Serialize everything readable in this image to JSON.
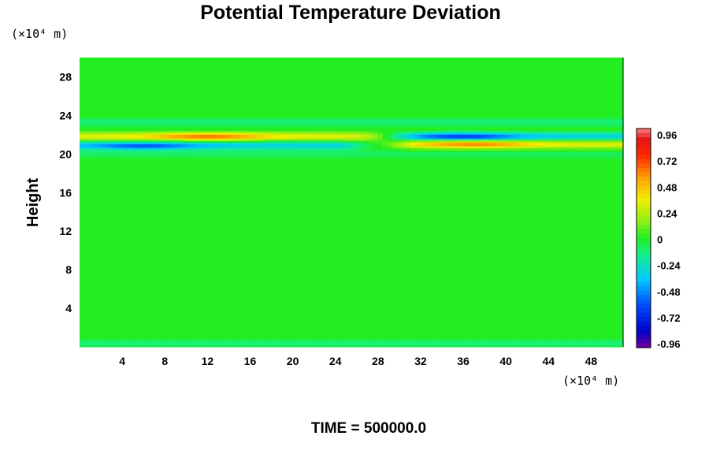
{
  "chart_data": {
    "type": "heatmap",
    "title": "Potential Temperature Deviation",
    "ylabel": "Height",
    "y_unit_label": "(×10⁴ m)",
    "x_unit_label": "(×10⁴ m)",
    "xlim": [
      0,
      51
    ],
    "ylim": [
      0,
      30
    ],
    "x_ticks": [
      4,
      8,
      12,
      16,
      20,
      24,
      28,
      32,
      36,
      40,
      44,
      48
    ],
    "y_ticks": [
      4,
      8,
      12,
      16,
      20,
      24,
      28
    ],
    "colorbar": {
      "range": [
        -1.0,
        1.0
      ],
      "tick_values": [
        0.96,
        0.72,
        0.48,
        0.24,
        0,
        -0.24,
        -0.48,
        -0.72,
        -0.96
      ],
      "tick_labels": [
        "0.96",
        "0.72",
        "0.48",
        "0.24",
        "0",
        "-0.24",
        "-0.48",
        "-0.72",
        "-0.96"
      ],
      "levels": 50
    },
    "background_value": 0.0,
    "features": [
      {
        "name": "upper cool layer",
        "x_range": [
          0,
          51
        ],
        "y": 23.3,
        "value": -0.2
      },
      {
        "name": "warm band left",
        "x_range": [
          0,
          28
        ],
        "y": 21.8,
        "value": 0.55
      },
      {
        "name": "warm core left",
        "x_center": 12,
        "y": 21.8,
        "value": 0.8
      },
      {
        "name": "cool band left",
        "x_range": [
          0,
          24
        ],
        "y": 20.9,
        "value": -0.55
      },
      {
        "name": "cool core left",
        "x_center": 6,
        "y": 20.8,
        "value": -0.7
      },
      {
        "name": "cool band right",
        "x_range": [
          30,
          51
        ],
        "y": 21.8,
        "value": -0.55
      },
      {
        "name": "cool core right",
        "x_center": 36,
        "y": 21.8,
        "value": -0.9
      },
      {
        "name": "warm band right",
        "x_range": [
          32,
          51
        ],
        "y": 21.0,
        "value": 0.55
      },
      {
        "name": "warm core right",
        "x_center": 37,
        "y": 21.0,
        "value": 0.75
      },
      {
        "name": "lower cool layer",
        "x_range": [
          0,
          51
        ],
        "y": 20.0,
        "value": -0.15
      },
      {
        "name": "surface cool layer",
        "x_range": [
          0,
          51
        ],
        "y": 0.4,
        "value": -0.2
      }
    ]
  },
  "footer": {
    "time_label": "TIME = 500000.0"
  },
  "colors": {
    "background": "#ffffff",
    "zero_level": "#22ee22"
  }
}
